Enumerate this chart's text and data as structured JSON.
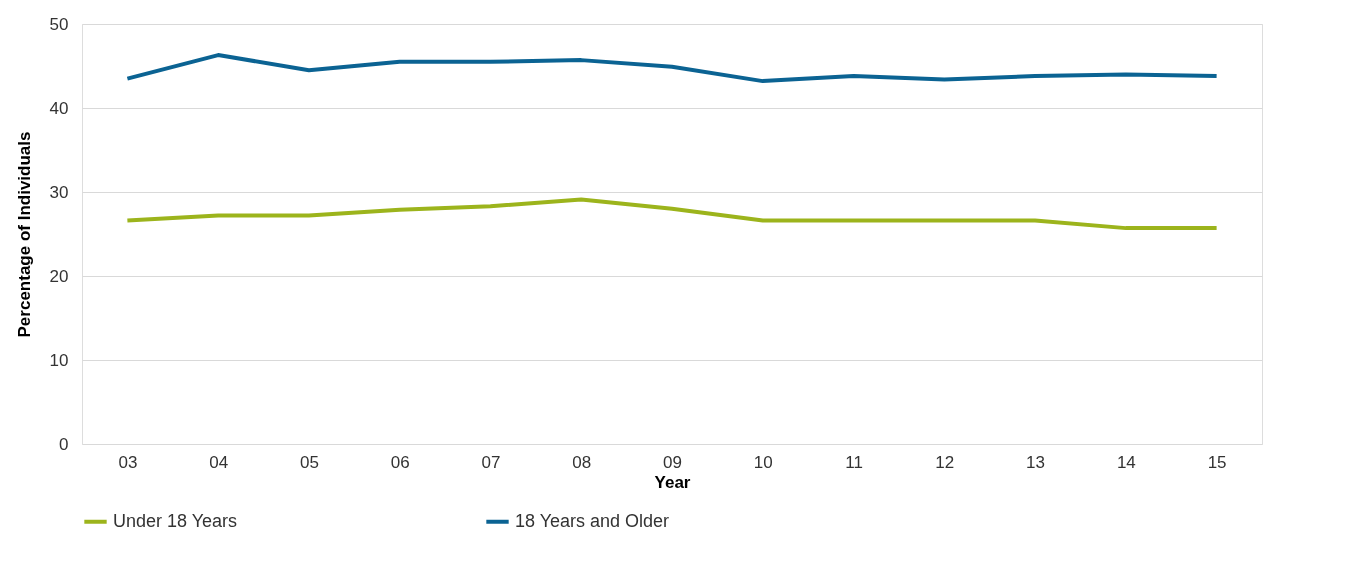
{
  "chart_data": {
    "type": "line",
    "xlabel": "Year",
    "ylabel": "Percentage of Individuals",
    "categories": [
      "03",
      "04",
      "05",
      "06",
      "07",
      "08",
      "09",
      "10",
      "11",
      "12",
      "13",
      "14",
      "15"
    ],
    "series": [
      {
        "name": "Under 18 Years",
        "color": "#9cb41c",
        "values": [
          26.6,
          27.2,
          27.2,
          27.9,
          28.3,
          29.1,
          28.0,
          26.6,
          26.6,
          26.6,
          26.6,
          25.7,
          25.7
        ]
      },
      {
        "name": "18 Years and Older",
        "color": "#0b6393",
        "values": [
          43.5,
          46.3,
          44.5,
          45.5,
          45.5,
          45.7,
          44.9,
          43.2,
          43.8,
          43.4,
          43.8,
          44.0,
          43.8
        ]
      }
    ],
    "ylim": [
      0,
      50
    ],
    "yticks": [
      0,
      10,
      20,
      30,
      40,
      50
    ],
    "grid": "y",
    "legend": "bottom",
    "marker": "none",
    "line_style": "solid"
  }
}
